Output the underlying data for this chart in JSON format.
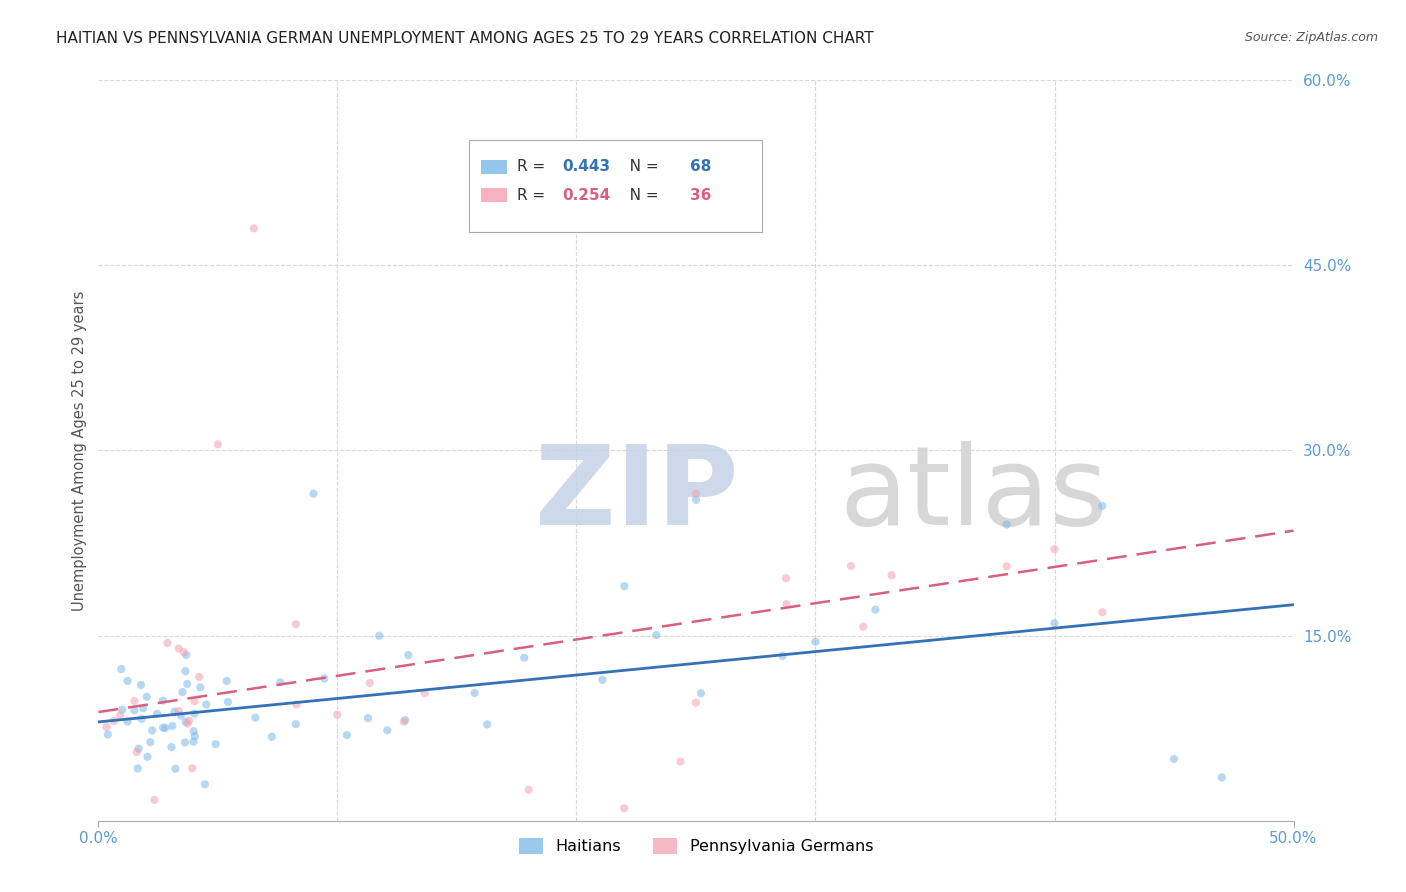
{
  "title": "HAITIAN VS PENNSYLVANIA GERMAN UNEMPLOYMENT AMONG AGES 25 TO 29 YEARS CORRELATION CHART",
  "source": "Source: ZipAtlas.com",
  "ylabel": "Unemployment Among Ages 25 to 29 years",
  "xlim": [
    0.0,
    0.5
  ],
  "ylim": [
    0.0,
    0.6
  ],
  "xticks": [
    0.0,
    0.5
  ],
  "xtick_labels": [
    "0.0%",
    "50.0%"
  ],
  "yticks_right": [
    0.15,
    0.3,
    0.45,
    0.6
  ],
  "ytick_labels_right": [
    "15.0%",
    "30.0%",
    "45.0%",
    "60.0%"
  ],
  "legend_r1": "R = 0.443",
  "legend_n1": "N = 68",
  "legend_r2": "R = 0.254",
  "legend_n2": "N = 36",
  "haitian_color": "#7ab8e8",
  "pg_color": "#f4a0b0",
  "haitian_line_color": "#3472b5",
  "pg_line_color": "#d95f7f",
  "watermark_zip_color": "#c8d4e8",
  "watermark_atlas_color": "#c8c8c8",
  "background_color": "#ffffff",
  "title_fontsize": 11,
  "tick_label_color": "#5b9bd5",
  "grid_color": "#d8d8d8",
  "haitian_slope": 0.18,
  "haitian_intercept": 0.075,
  "pg_slope": 0.25,
  "pg_intercept": 0.08,
  "scatter_size": 35,
  "scatter_alpha": 0.55
}
